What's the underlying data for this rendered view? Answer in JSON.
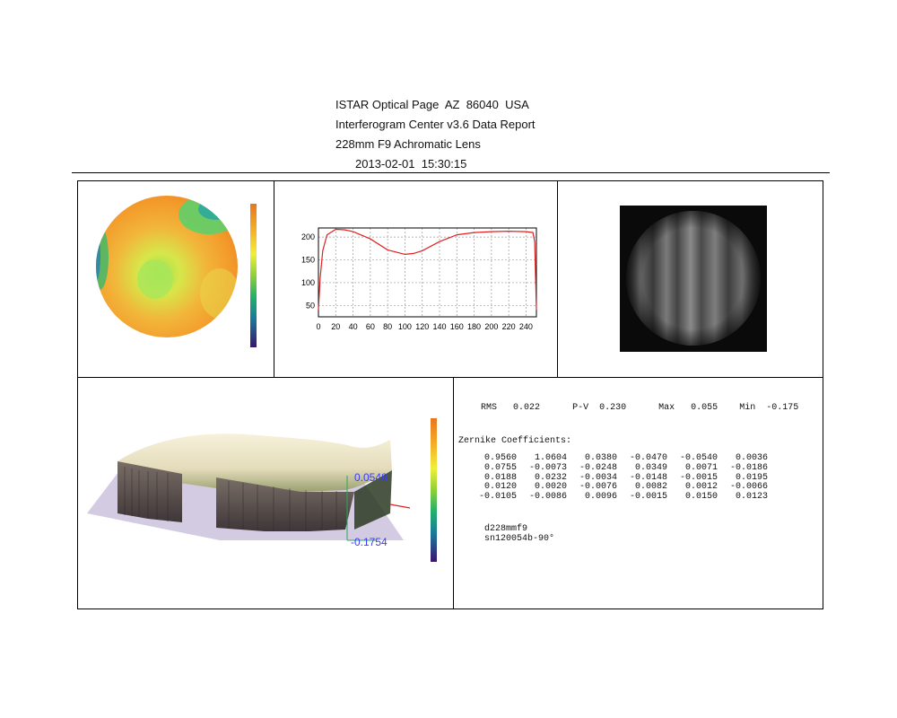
{
  "header": {
    "line1": "ISTAR Optical Page  AZ  86040  USA",
    "line2": "Interferogram Center v3.6 Data Report",
    "line3": "228mm F9 Achromatic Lens",
    "line4": "2013-02-01  15:30:15"
  },
  "colors": {
    "curve": "#e02020",
    "frame": "#000000",
    "scale_label": "#3a3aff"
  },
  "icons": [
    "wavefront-map",
    "profile-chart",
    "interferogram-image",
    "surface-3d-plot"
  ],
  "chart_data": {
    "type": "line",
    "x": [
      0,
      2,
      5,
      10,
      20,
      30,
      40,
      60,
      80,
      100,
      110,
      120,
      140,
      160,
      180,
      200,
      220,
      240,
      248,
      250,
      252
    ],
    "series": [
      {
        "values": [
          40,
          110,
          170,
          205,
          217,
          216,
          212,
          196,
          172,
          162,
          164,
          170,
          190,
          205,
          210,
          212,
          213,
          212,
          210,
          190,
          40
        ]
      }
    ],
    "x_ticks": [
      "0",
      "20",
      "40",
      "60",
      "80",
      "100",
      "120",
      "140",
      "160",
      "180",
      "200",
      "220",
      "240"
    ],
    "y_ticks": [
      "50",
      "100",
      "150",
      "200"
    ],
    "xlim": [
      0,
      252
    ],
    "ylim": [
      25,
      220
    ],
    "grid": true
  },
  "surface3d": {
    "top_label": "0.0548",
    "bottom_label": "-0.1754"
  },
  "stats": {
    "rms_label": "RMS",
    "rms_value": "0.022",
    "pv_label": "P-V",
    "pv_value": "0.230",
    "max_label": "Max",
    "max_value": "0.055",
    "min_label": "Min",
    "min_value": "-0.175"
  },
  "zernike": {
    "label": "Zernike Coefficients:",
    "rows": [
      [
        "0.9560",
        "1.0604",
        "0.0380",
        "-0.0470",
        "-0.0540",
        "0.0036"
      ],
      [
        "0.0755",
        "-0.0073",
        "-0.0248",
        "0.0349",
        "0.0071",
        "-0.0186"
      ],
      [
        "0.0188",
        "0.0232",
        "-0.0034",
        "-0.0148",
        "-0.0015",
        "0.0195"
      ],
      [
        "0.0120",
        "0.0020",
        "-0.0076",
        "0.0082",
        "0.0012",
        "-0.0066"
      ],
      [
        "-0.0105",
        "-0.0086",
        "0.0096",
        "-0.0015",
        "0.0150",
        "0.0123"
      ]
    ]
  },
  "meta": {
    "file": "d228mmf9",
    "serial": "sn120054b-90°"
  }
}
